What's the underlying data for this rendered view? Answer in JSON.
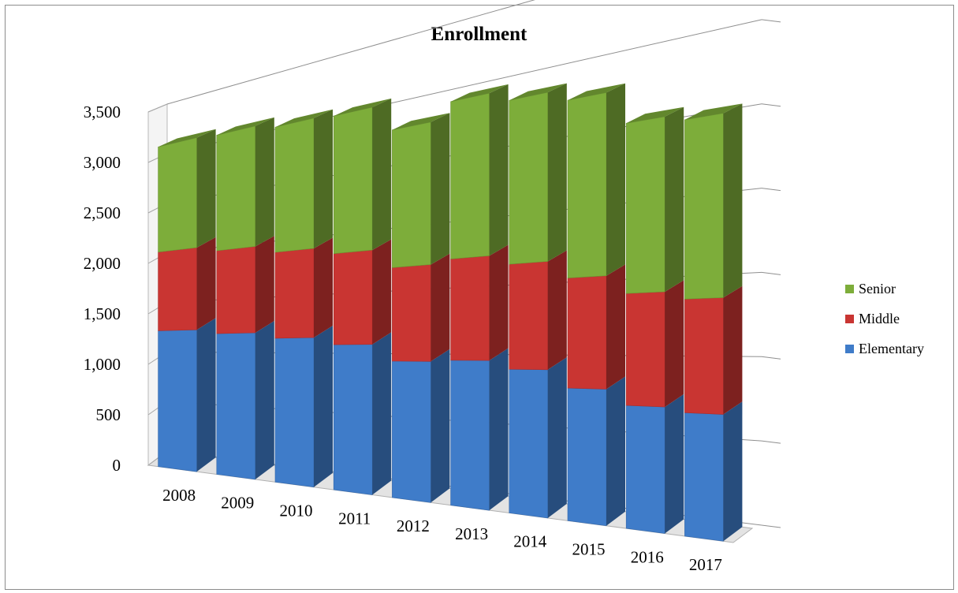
{
  "chart_data": {
    "type": "bar",
    "stacked": true,
    "three_d": true,
    "title": "Enrollment",
    "categories": [
      "2008",
      "2009",
      "2010",
      "2011",
      "2012",
      "2013",
      "2014",
      "2015",
      "2016",
      "2017"
    ],
    "series": [
      {
        "name": "Elementary",
        "color": "#3f7cc9",
        "values": [
          1330,
          1290,
          1240,
          1180,
          1050,
          1060,
          1000,
          880,
          780,
          750
        ]
      },
      {
        "name": "Middle",
        "color": "#c93532",
        "values": [
          770,
          760,
          740,
          740,
          720,
          740,
          730,
          730,
          710,
          690
        ]
      },
      {
        "name": "Senior",
        "color": "#7dad3a",
        "values": [
          1030,
          1060,
          1080,
          1120,
          1060,
          1150,
          1140,
          1180,
          1080,
          1090
        ]
      }
    ],
    "yticks": [
      "0",
      "500",
      "1,000",
      "1,500",
      "2,000",
      "2,500",
      "3,000",
      "3,500"
    ],
    "ylim": [
      0,
      3500
    ],
    "grid": true,
    "legend_position": "right"
  }
}
